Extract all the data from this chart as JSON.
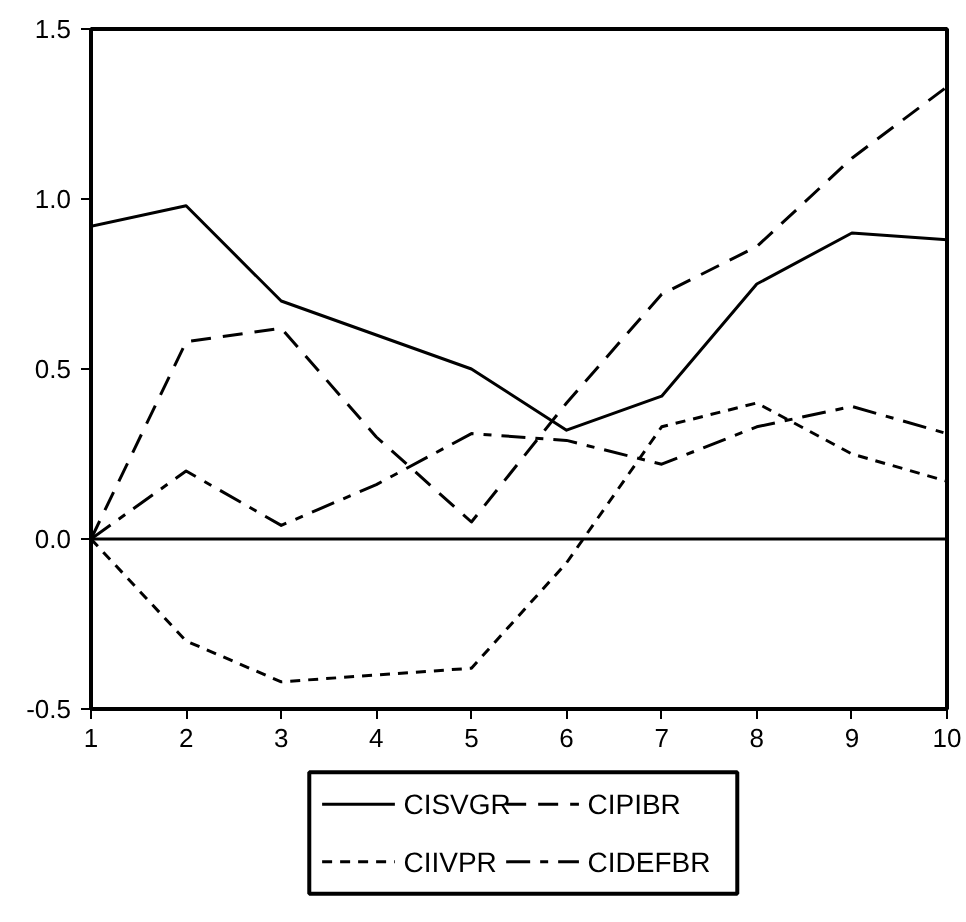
{
  "chart_data": {
    "type": "line",
    "x": [
      1,
      2,
      3,
      4,
      5,
      6,
      7,
      8,
      9,
      10
    ],
    "series": [
      {
        "name": "CISVGR",
        "color": "#000000",
        "line_style": "solid",
        "values": [
          0.92,
          0.98,
          0.7,
          0.6,
          0.5,
          0.32,
          0.42,
          0.75,
          0.9,
          0.88
        ]
      },
      {
        "name": "CIPIBR",
        "color": "#000000",
        "line_style": "dashed",
        "values": [
          0.0,
          0.58,
          0.62,
          0.3,
          0.05,
          0.4,
          0.72,
          0.86,
          1.12,
          1.33
        ]
      },
      {
        "name": "CIIVPR",
        "color": "#000000",
        "line_style": "dotted",
        "values": [
          0.0,
          -0.3,
          -0.42,
          -0.4,
          -0.38,
          -0.07,
          0.33,
          0.4,
          0.25,
          0.17
        ]
      },
      {
        "name": "CIDEFBR",
        "color": "#000000",
        "line_style": "dashdot",
        "values": [
          0.0,
          0.2,
          0.04,
          0.16,
          0.31,
          0.29,
          0.22,
          0.33,
          0.39,
          0.31
        ]
      }
    ],
    "xlim": [
      1,
      10
    ],
    "ylim": [
      -0.5,
      1.5
    ],
    "xticks": [
      1,
      2,
      3,
      4,
      5,
      6,
      7,
      8,
      9,
      10
    ],
    "yticks": [
      {
        "value": -0.5,
        "label": "-0.5"
      },
      {
        "value": 0,
        "label": "0.0"
      },
      {
        "value": 0.5,
        "label": "0.5"
      },
      {
        "value": 1.0,
        "label": "1.0"
      },
      {
        "value": 1.5,
        "label": "1.5"
      }
    ],
    "ref_lines": [
      {
        "axis": "y",
        "value": 0,
        "label": null,
        "color": "#000000"
      }
    ],
    "grid": false,
    "legend": "bottom",
    "marker": "none"
  }
}
